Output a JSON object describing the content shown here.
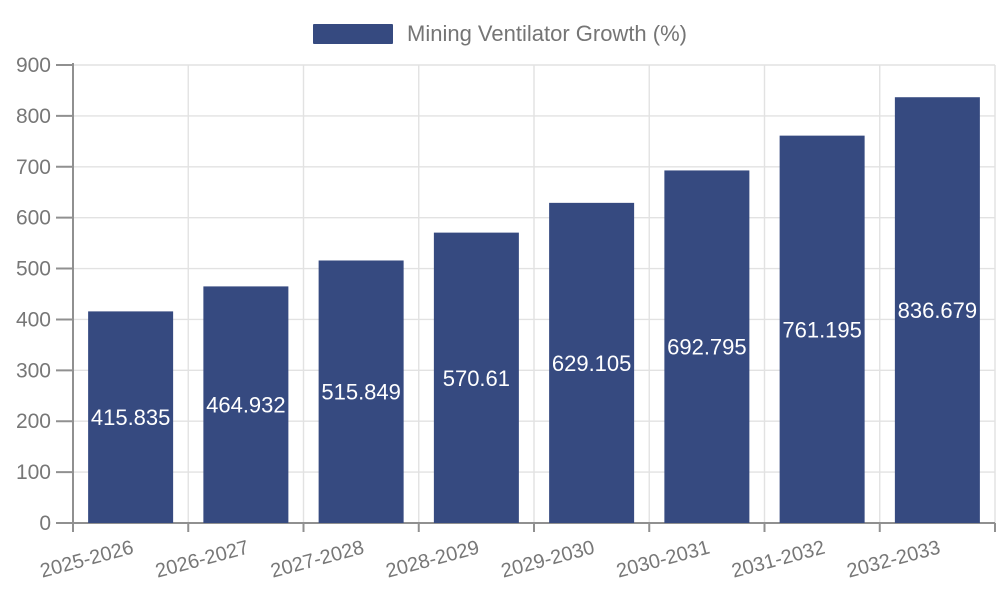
{
  "legend": {
    "label": "Mining Ventilator Growth (%)"
  },
  "chart_data": {
    "type": "bar",
    "title": "Mining Ventilator Growth (%)",
    "categories": [
      "2025-2026",
      "2026-2027",
      "2027-2028",
      "2028-2029",
      "2029-2030",
      "2030-2031",
      "2031-2032",
      "2032-2033"
    ],
    "values": [
      415.835,
      464.932,
      515.849,
      570.61,
      629.105,
      692.795,
      761.195,
      836.679
    ],
    "value_labels": [
      "415.835",
      "464.932",
      "515.849",
      "570.61",
      "629.105",
      "692.795",
      "761.195",
      "836.679"
    ],
    "xlabel": "",
    "ylabel": "",
    "ylim": [
      0,
      900
    ],
    "y_tick_step": 100,
    "y_tick_labels": [
      "0",
      "100",
      "200",
      "300",
      "400",
      "500",
      "600",
      "700",
      "800",
      "900"
    ],
    "grid": true,
    "legend_position": "top-center",
    "x_label_rotation_deg": -15,
    "colors": {
      "bar": "#364A80",
      "value_label": "#ffffff",
      "grid_line": "#e2e2e2",
      "axis_line": "#909090",
      "tick_label": "#777777",
      "legend_text": "#757575",
      "background": "#ffffff"
    }
  }
}
